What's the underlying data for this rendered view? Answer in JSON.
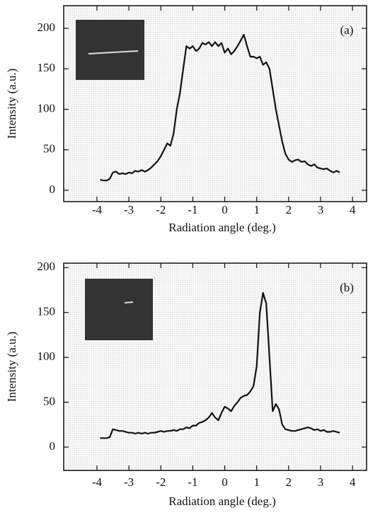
{
  "chart_data": [
    {
      "type": "line",
      "annotation": "(a)",
      "x_label": "Radiation angle (deg.)",
      "y_label": "Intensity (a.u.)",
      "x": [
        -3.9,
        -3.8,
        -3.7,
        -3.6,
        -3.5,
        -3.4,
        -3.3,
        -3.2,
        -3.1,
        -3.0,
        -2.9,
        -2.8,
        -2.7,
        -2.6,
        -2.5,
        -2.4,
        -2.3,
        -2.2,
        -2.1,
        -2.0,
        -1.9,
        -1.8,
        -1.7,
        -1.6,
        -1.5,
        -1.4,
        -1.3,
        -1.2,
        -1.1,
        -1.0,
        -0.9,
        -0.8,
        -0.7,
        -0.6,
        -0.5,
        -0.4,
        -0.3,
        -0.2,
        -0.1,
        0.0,
        0.1,
        0.2,
        0.3,
        0.4,
        0.5,
        0.6,
        0.7,
        0.8,
        0.9,
        1.0,
        1.1,
        1.2,
        1.3,
        1.4,
        1.5,
        1.6,
        1.7,
        1.8,
        1.9,
        2.0,
        2.1,
        2.2,
        2.3,
        2.4,
        2.5,
        2.6,
        2.7,
        2.8,
        2.9,
        3.0,
        3.1,
        3.2,
        3.3,
        3.4,
        3.5,
        3.6
      ],
      "values": [
        13,
        12,
        12,
        14,
        22,
        23,
        20,
        21,
        20,
        22,
        21,
        24,
        23,
        25,
        23,
        25,
        28,
        32,
        36,
        42,
        50,
        58,
        55,
        70,
        100,
        120,
        150,
        178,
        175,
        178,
        172,
        175,
        182,
        180,
        183,
        178,
        183,
        178,
        182,
        170,
        175,
        168,
        172,
        178,
        185,
        192,
        178,
        165,
        165,
        163,
        165,
        155,
        158,
        150,
        125,
        100,
        80,
        60,
        45,
        38,
        35,
        37,
        38,
        35,
        36,
        32,
        30,
        32,
        28,
        27,
        26,
        27,
        24,
        22,
        24,
        22
      ],
      "color": "#111111",
      "xlim": [
        -5.04,
        4.44
      ],
      "xticks": [
        -4,
        -3,
        -2,
        -1,
        0,
        1,
        2,
        3,
        4
      ],
      "ylim": [
        -14,
        228
      ],
      "yticks": [
        0,
        50,
        100,
        150,
        200
      ]
    },
    {
      "type": "line",
      "annotation": "(b)",
      "x_label": "Radiation angle (deg.)",
      "y_label": "Intensity (a.u.)",
      "x": [
        -3.9,
        -3.8,
        -3.7,
        -3.6,
        -3.5,
        -3.4,
        -3.3,
        -3.2,
        -3.1,
        -3.0,
        -2.9,
        -2.8,
        -2.7,
        -2.6,
        -2.5,
        -2.4,
        -2.3,
        -2.2,
        -2.1,
        -2.0,
        -1.9,
        -1.8,
        -1.7,
        -1.6,
        -1.5,
        -1.4,
        -1.3,
        -1.2,
        -1.1,
        -1.0,
        -0.9,
        -0.8,
        -0.7,
        -0.6,
        -0.5,
        -0.4,
        -0.3,
        -0.2,
        -0.1,
        0.0,
        0.1,
        0.2,
        0.3,
        0.4,
        0.5,
        0.6,
        0.7,
        0.8,
        0.9,
        1.0,
        1.1,
        1.2,
        1.3,
        1.4,
        1.5,
        1.6,
        1.7,
        1.8,
        1.9,
        2.0,
        2.1,
        2.2,
        2.3,
        2.4,
        2.5,
        2.6,
        2.7,
        2.8,
        2.9,
        3.0,
        3.1,
        3.2,
        3.3,
        3.4,
        3.5,
        3.6
      ],
      "values": [
        10,
        10,
        10,
        11,
        20,
        19,
        18,
        18,
        17,
        16,
        16,
        15,
        16,
        15,
        16,
        15,
        16,
        16,
        17,
        18,
        17,
        18,
        18,
        19,
        18,
        20,
        20,
        22,
        21,
        24,
        24,
        27,
        28,
        30,
        33,
        38,
        33,
        30,
        38,
        45,
        43,
        40,
        46,
        50,
        55,
        57,
        58,
        62,
        68,
        90,
        150,
        172,
        160,
        100,
        40,
        48,
        42,
        25,
        20,
        19,
        18,
        18,
        19,
        20,
        21,
        22,
        21,
        19,
        20,
        18,
        19,
        17,
        17,
        18,
        17,
        16
      ],
      "color": "#111111",
      "xlim": [
        -5.04,
        4.44
      ],
      "xticks": [
        -4,
        -3,
        -2,
        -1,
        0,
        1,
        2,
        3,
        4
      ],
      "ylim": [
        -26,
        205
      ],
      "yticks": [
        0,
        50,
        100,
        150,
        200
      ]
    }
  ]
}
